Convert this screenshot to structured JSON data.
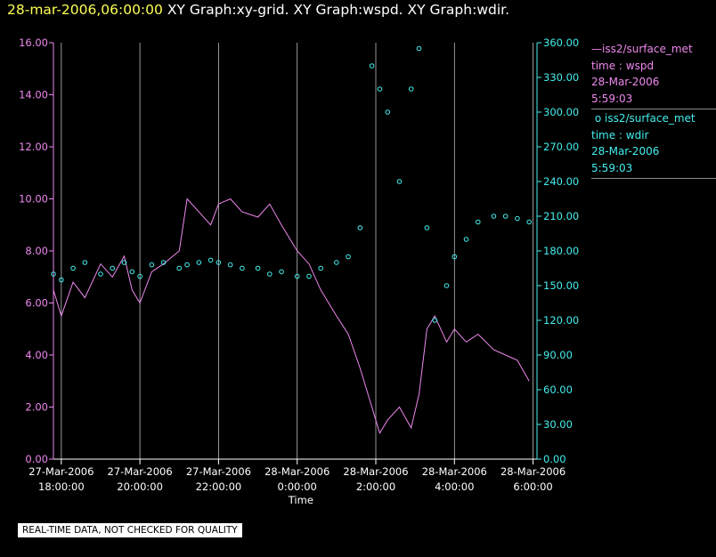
{
  "title": {
    "datetime": "28-mar-2006,06:00:00",
    "graphs": "XY Graph:xy-grid.  XY Graph:wspd.  XY Graph:wdir."
  },
  "legend": {
    "wspd": {
      "source": "iss2/surface_met",
      "var": "time : wspd",
      "date": "28-Mar-2006",
      "time": "5:59:03",
      "color": "#ee88ee"
    },
    "wdir": {
      "source": "iss2/surface_met",
      "var": "time : wdir",
      "date": "28-Mar-2006",
      "time": "5:59:03",
      "color": "#44eeee"
    }
  },
  "notice": "REAL-TIME DATA, NOT CHECKED FOR QUALITY",
  "chart_data": {
    "type": "line",
    "xlabel": "Time",
    "x_range_hours": [
      17.8,
      30.1
    ],
    "x_ticks": [
      {
        "t": 18,
        "label1": "27-Mar-2006",
        "label2": "18:00:00"
      },
      {
        "t": 20,
        "label1": "27-Mar-2006",
        "label2": "20:00:00"
      },
      {
        "t": 22,
        "label1": "27-Mar-2006",
        "label2": "22:00:00"
      },
      {
        "t": 24,
        "label1": "28-Mar-2006",
        "label2": "0:00:00"
      },
      {
        "t": 26,
        "label1": "28-Mar-2006",
        "label2": "2:00:00"
      },
      {
        "t": 28,
        "label1": "28-Mar-2006",
        "label2": "4:00:00"
      },
      {
        "t": 30,
        "label1": "28-Mar-2006",
        "label2": "6:00:00"
      }
    ],
    "left_axis": {
      "ylim": [
        0,
        16
      ],
      "ticks": [
        "0.00",
        "2.00",
        "4.00",
        "6.00",
        "8.00",
        "10.00",
        "12.00",
        "14.00",
        "16.00"
      ],
      "color": "#ee88ee"
    },
    "right_axis": {
      "ylim": [
        0,
        360
      ],
      "ticks": [
        "0.00",
        "30.00",
        "60.00",
        "90.00",
        "120.00",
        "150.00",
        "180.00",
        "210.00",
        "240.00",
        "270.00",
        "300.00",
        "330.00",
        "360.00"
      ],
      "color": "#44eeee"
    },
    "grid": "vertical lines at each x tick",
    "series": [
      {
        "name": "iss2/surface_met time : wspd",
        "axis": "left",
        "style": "line",
        "color": "#ee88ee",
        "x_hours": [
          17.8,
          18.0,
          18.3,
          18.6,
          19.0,
          19.3,
          19.6,
          19.8,
          20.0,
          20.3,
          20.6,
          21.0,
          21.2,
          21.5,
          21.8,
          22.0,
          22.3,
          22.6,
          23.0,
          23.3,
          23.6,
          24.0,
          24.3,
          24.6,
          25.0,
          25.3,
          25.6,
          25.9,
          26.1,
          26.3,
          26.6,
          26.9,
          27.1,
          27.3,
          27.5,
          27.8,
          28.0,
          28.3,
          28.6,
          29.0,
          29.3,
          29.6,
          29.9
        ],
        "y": [
          6.5,
          5.5,
          6.8,
          6.2,
          7.5,
          7.0,
          7.8,
          6.5,
          6.0,
          7.2,
          7.5,
          8.0,
          10.0,
          9.5,
          9.0,
          9.8,
          10.0,
          9.5,
          9.3,
          9.8,
          9.0,
          8.0,
          7.5,
          6.5,
          5.5,
          4.8,
          3.5,
          2.0,
          1.0,
          1.5,
          2.0,
          1.2,
          2.5,
          5.0,
          5.5,
          4.5,
          5.0,
          4.5,
          4.8,
          4.2,
          4.0,
          3.8,
          3.0
        ]
      },
      {
        "name": "iss2/surface_met time : wdir",
        "axis": "right",
        "style": "points",
        "color": "#44eeee",
        "x_hours": [
          17.8,
          18.0,
          18.3,
          18.6,
          19.0,
          19.3,
          19.6,
          19.8,
          20.0,
          20.3,
          20.6,
          21.0,
          21.2,
          21.5,
          21.8,
          22.0,
          22.3,
          22.6,
          23.0,
          23.3,
          23.6,
          24.0,
          24.3,
          24.6,
          25.0,
          25.3,
          25.6,
          25.9,
          26.1,
          26.3,
          26.6,
          26.9,
          27.1,
          27.3,
          27.5,
          27.8,
          28.0,
          28.3,
          28.6,
          29.0,
          29.3,
          29.6,
          29.9
        ],
        "y": [
          160,
          155,
          165,
          170,
          160,
          165,
          170,
          162,
          158,
          168,
          170,
          165,
          168,
          170,
          172,
          170,
          168,
          165,
          165,
          160,
          162,
          158,
          158,
          165,
          170,
          175,
          200,
          340,
          320,
          300,
          240,
          320,
          355,
          200,
          120,
          150,
          175,
          190,
          205,
          210,
          210,
          208,
          205
        ]
      }
    ]
  }
}
